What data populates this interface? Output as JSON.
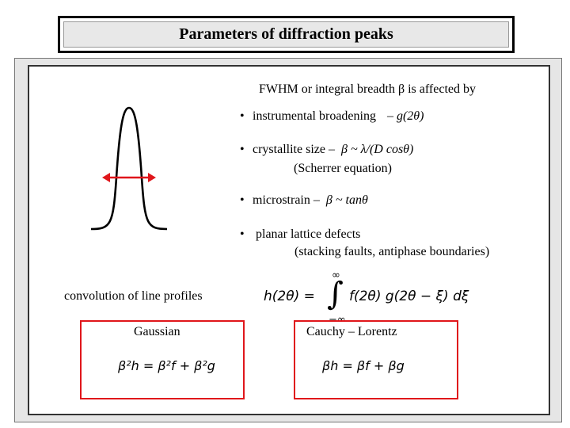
{
  "title": "Parameters of diffraction peaks",
  "intro": "FWHM or integral breadth β is affected by",
  "bullets": {
    "instrumental": {
      "text": "instrumental broadening",
      "formula": "– g(2θ)"
    },
    "crystallite": {
      "text": "crystallite size –",
      "formula": "β ~ λ/(D cosθ)",
      "note": "(Scherrer equation)"
    },
    "microstrain": {
      "text": "microstrain –",
      "formula": "β ~ tanθ"
    },
    "planar": {
      "text": "planar lattice defects",
      "note": "(stacking faults, antiphase boundaries)"
    }
  },
  "convolution_label": "convolution of line profiles",
  "convolution_equation": {
    "lhs": "h(2θ) =",
    "upper_limit": "∞",
    "lower_limit": "−∞",
    "integrand": "f(2θ) g(2θ − ξ) dξ"
  },
  "gaussian": {
    "label": "Gaussian",
    "equation": "β²h = β²f + β²g"
  },
  "lorentz": {
    "label": "Cauchy – Lorentz",
    "equation": "βh = βf + βg"
  },
  "colors": {
    "box_border": "#e0161b",
    "arrow": "#e0161b",
    "panel_bg": "#e6e6e6"
  },
  "icons": {
    "bullet": "bullet-dot",
    "peak": "peak-profile-curve"
  }
}
